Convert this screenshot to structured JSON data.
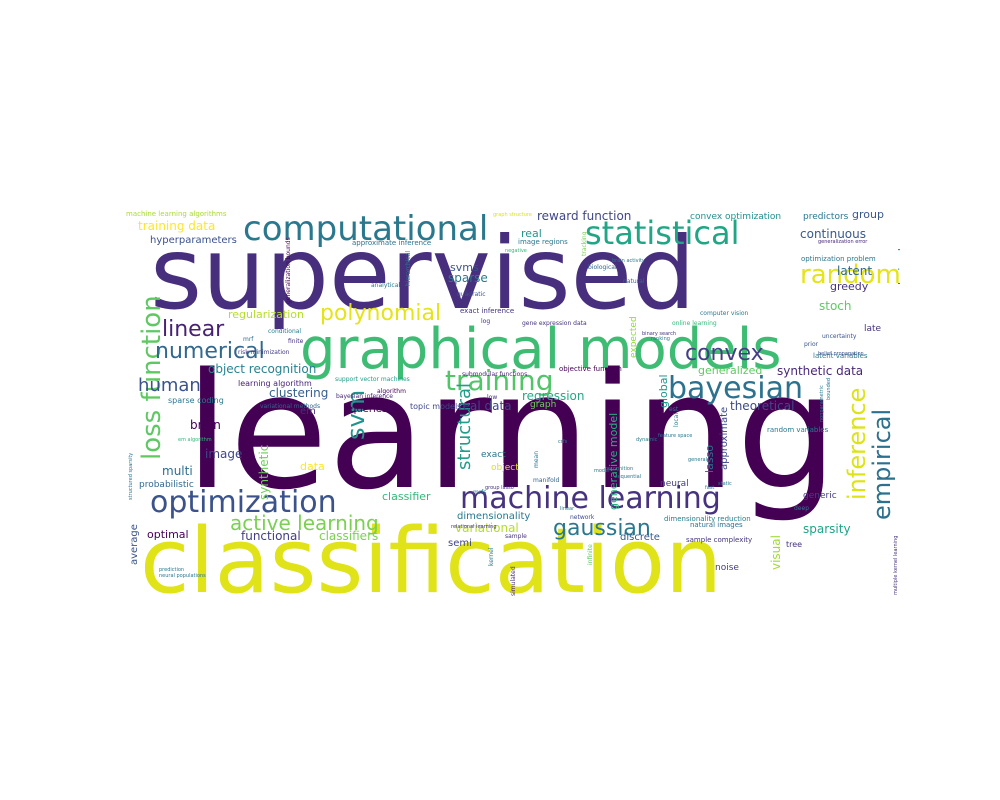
{
  "words": [
    {
      "text": "learning",
      "color": "#440154",
      "rank": 1
    },
    {
      "text": "supervised",
      "color": "#472f7d",
      "rank": 2
    },
    {
      "text": "classification",
      "color": "#dfe318",
      "rank": 3
    },
    {
      "text": "graphical models",
      "color": "#3fbc73",
      "rank": 4
    },
    {
      "text": "computational",
      "color": "#2a788e",
      "rank": 5
    },
    {
      "text": "statistical",
      "color": "#21a685",
      "rank": 6
    },
    {
      "text": "machine learning",
      "color": "#46327e",
      "rank": 7
    },
    {
      "text": "optimization",
      "color": "#3b528b",
      "rank": 8
    },
    {
      "text": "bayesian",
      "color": "#2c728e",
      "rank": 9
    },
    {
      "text": "training",
      "color": "#52c569",
      "rank": 10
    },
    {
      "text": "loss function",
      "color": "#5ec962",
      "rank": 11
    },
    {
      "text": "active learning",
      "color": "#7ad151",
      "rank": 12
    },
    {
      "text": "gaussian",
      "color": "#2a788e",
      "rank": 13
    },
    {
      "text": "polynomial",
      "color": "#e5e419",
      "rank": 14
    },
    {
      "text": "convex",
      "color": "#433e85",
      "rank": 15
    },
    {
      "text": "linear",
      "color": "#482173",
      "rank": 16
    },
    {
      "text": "random",
      "color": "#e5e419",
      "rank": 17
    },
    {
      "text": "numerical",
      "color": "#31688e",
      "rank": 18
    },
    {
      "text": "svm",
      "color": "#1f948c",
      "rank": 19
    },
    {
      "text": "empirical",
      "color": "#2d708e",
      "rank": 20
    },
    {
      "text": "inference",
      "color": "#dde318",
      "rank": 21
    },
    {
      "text": "human",
      "color": "#3b528b",
      "rank": 22
    },
    {
      "text": "structural",
      "color": "#1f9e89",
      "rank": 23
    },
    {
      "text": "continuous",
      "color": "#38588c",
      "rank": 24
    },
    {
      "text": "object recognition",
      "color": "#26828e",
      "rank": 25
    },
    {
      "text": "reward function",
      "color": "#404688",
      "rank": 26
    },
    {
      "text": "training data",
      "color": "#fde725",
      "rank": 27
    },
    {
      "text": "hyperparameters",
      "color": "#3b528b",
      "rank": 28
    },
    {
      "text": "regularization",
      "color": "#b5de2b",
      "rank": 29
    },
    {
      "text": "synthetic data",
      "color": "#482878",
      "rank": 30
    },
    {
      "text": "real data",
      "color": "#414487",
      "rank": 31
    },
    {
      "text": "clustering",
      "color": "#355f8d",
      "rank": 32
    },
    {
      "text": "theoretical",
      "color": "#3e4989",
      "rank": 33
    },
    {
      "text": "brain",
      "color": "#440154",
      "rank": 34
    },
    {
      "text": "image",
      "color": "#404688",
      "rank": 35
    },
    {
      "text": "multi",
      "color": "#2e6e8e",
      "rank": 36
    },
    {
      "text": "sparse",
      "color": "#2a788e",
      "rank": 37
    },
    {
      "text": "svms",
      "color": "#3b528b",
      "rank": 38
    },
    {
      "text": "real",
      "color": "#1f988b",
      "rank": 39
    },
    {
      "text": "regression",
      "color": "#22a884",
      "rank": 40
    },
    {
      "text": "group",
      "color": "#39568c",
      "rank": 41
    },
    {
      "text": "latent",
      "color": "#31688e",
      "rank": 42
    },
    {
      "text": "stoch",
      "color": "#5ec962",
      "rank": 43
    },
    {
      "text": "generalized",
      "color": "#5ec962",
      "rank": 44
    },
    {
      "text": "regularized",
      "color": "#2a788e",
      "rank": 45
    },
    {
      "text": "optimal",
      "color": "#440154",
      "rank": 46
    },
    {
      "text": "functional",
      "color": "#433e85",
      "rank": 47
    },
    {
      "text": "classifier",
      "color": "#35b779",
      "rank": 48
    },
    {
      "text": "classifiers",
      "color": "#7ad151",
      "rank": 49
    },
    {
      "text": "variational",
      "color": "#b5de2b",
      "rank": 50
    },
    {
      "text": "sparsity",
      "color": "#20a386",
      "rank": 51
    },
    {
      "text": "visual",
      "color": "#a0da39",
      "rank": 52
    },
    {
      "text": "average",
      "color": "#3b528b",
      "rank": 53
    },
    {
      "text": "data",
      "color": "#fde725",
      "rank": 54
    },
    {
      "text": "synthetic",
      "color": "#6ccd5a",
      "rank": 55
    },
    {
      "text": "probabilistic",
      "color": "#31688e",
      "rank": 56
    },
    {
      "text": "greedy",
      "color": "#46327e",
      "rank": 57
    },
    {
      "text": "generative model",
      "color": "#29af7f",
      "rank": 58
    },
    {
      "text": "global",
      "color": "#1f968b",
      "rank": 59
    },
    {
      "text": "neural",
      "color": "#433e85",
      "rank": 60
    },
    {
      "text": "lasso",
      "color": "#2c728e",
      "rank": 61
    },
    {
      "text": "approximate",
      "color": "#3e4989",
      "rank": 62
    },
    {
      "text": "queries",
      "color": "#440154",
      "rank": 63
    },
    {
      "text": "em",
      "color": "#472d7b",
      "rank": 64
    },
    {
      "text": "dimensionality",
      "color": "#2a788e",
      "rank": 65
    },
    {
      "text": "semi",
      "color": "#414487",
      "rank": 66
    },
    {
      "text": "discrete",
      "color": "#39568c",
      "rank": 67
    },
    {
      "text": "noise",
      "color": "#433e85",
      "rank": 68
    },
    {
      "text": "convex optimization",
      "color": "#21918c",
      "rank": 69
    },
    {
      "text": "predictors",
      "color": "#2a788e",
      "rank": 70
    },
    {
      "text": "graph",
      "color": "#6ccd5a",
      "rank": 71
    },
    {
      "text": "exact",
      "color": "#2a788e",
      "rank": 72
    },
    {
      "text": "object",
      "color": "#dde318",
      "rank": 73
    },
    {
      "text": "generic",
      "color": "#433e85",
      "rank": 74
    },
    {
      "text": "tree",
      "color": "#46337f",
      "rank": 75
    },
    {
      "text": "late",
      "color": "#46337f",
      "rank": 76
    },
    {
      "text": "expected",
      "color": "#90d743",
      "rank": 77
    },
    {
      "text": "topic models",
      "color": "#3e4989",
      "rank": 78
    },
    {
      "text": "learning algorithm",
      "color": "#482475",
      "rank": 79
    },
    {
      "text": "sparse coding",
      "color": "#2a788e",
      "rank": 80
    },
    {
      "text": "machine learning algorithms",
      "color": "#a8db34",
      "rank": 81
    },
    {
      "text": "approximate inference",
      "color": "#2c728e",
      "rank": 82
    },
    {
      "text": "image regions",
      "color": "#2a788e",
      "rank": 83
    },
    {
      "text": "natural images",
      "color": "#2e6e8e",
      "rank": 84
    },
    {
      "text": "sample complexity",
      "color": "#46337f",
      "rank": 85
    },
    {
      "text": "dimensionality reduction",
      "color": "#277f8e",
      "rank": 86
    },
    {
      "text": "random variables",
      "color": "#2a788e",
      "rank": 87
    },
    {
      "text": "latent variables",
      "color": "#2a788e",
      "rank": 88
    },
    {
      "text": "optimization problem",
      "color": "#2a788e",
      "rank": 89
    },
    {
      "text": "exact inference",
      "color": "#46327e",
      "rank": 90
    },
    {
      "text": "gene expression data",
      "color": "#46327e",
      "rank": 91
    },
    {
      "text": "objective function",
      "color": "#440154",
      "rank": 92
    },
    {
      "text": "submodular functions",
      "color": "#482878",
      "rank": 93
    },
    {
      "text": "bayesian inference",
      "color": "#482878",
      "rank": 94
    },
    {
      "text": "variational methods",
      "color": "#31688e",
      "rank": 95
    },
    {
      "text": "support vector machines",
      "color": "#1f9e89",
      "rank": 96
    },
    {
      "text": "risk minimization",
      "color": "#443a83",
      "rank": 97
    },
    {
      "text": "computer vision",
      "color": "#2a788e",
      "rank": 98
    },
    {
      "text": "online learning",
      "color": "#35b779",
      "rank": 99
    },
    {
      "text": "generalization bounds",
      "color": "#440154",
      "rank": 100
    },
    {
      "text": "algorithm",
      "color": "#440154",
      "rank": 101
    },
    {
      "text": "quadratic",
      "color": "#3b528b",
      "rank": 102
    },
    {
      "text": "analytical",
      "color": "#2a788e",
      "rank": 103
    },
    {
      "text": "natural",
      "color": "#31688e",
      "rank": 104
    },
    {
      "text": "biological",
      "color": "#33638d",
      "rank": 105
    },
    {
      "text": "hierarchical",
      "color": "#2a788e",
      "rank": 106
    },
    {
      "text": "conditional",
      "color": "#277f8e",
      "rank": 107
    },
    {
      "text": "finite",
      "color": "#46327e",
      "rank": 108
    },
    {
      "text": "mrf",
      "color": "#2e6e8e",
      "rank": 109
    },
    {
      "text": "em algorithm",
      "color": "#35b779",
      "rank": 110
    },
    {
      "text": "manifold",
      "color": "#33638d",
      "rank": 111
    },
    {
      "text": "low",
      "color": "#46327e",
      "rank": 112
    },
    {
      "text": "log",
      "color": "#46327e",
      "rank": 113
    },
    {
      "text": "mean",
      "color": "#2a788e",
      "rank": 114
    },
    {
      "text": "kernel",
      "color": "#2a788e",
      "rank": 115
    },
    {
      "text": "simulated",
      "color": "#482878",
      "rank": 116
    },
    {
      "text": "sample",
      "color": "#46327e",
      "rank": 117
    },
    {
      "text": "infinite",
      "color": "#5ec962",
      "rank": 118
    },
    {
      "text": "network",
      "color": "#3e4989",
      "rank": 119
    },
    {
      "text": "local",
      "color": "#2a788e",
      "rank": 120
    },
    {
      "text": "est",
      "color": "#2a788e",
      "rank": 121
    },
    {
      "text": "deep",
      "color": "#2a788e",
      "rank": 122
    },
    {
      "text": "prior",
      "color": "#3b528b",
      "rank": 123
    },
    {
      "text": "uncertainty",
      "color": "#3b528b",
      "rank": 124
    },
    {
      "text": "generalization error",
      "color": "#482878",
      "rank": 125
    },
    {
      "text": "structured sparsity",
      "color": "#2c728e",
      "rank": 126
    },
    {
      "text": "multiple kernel learning",
      "color": "#46327e",
      "rank": 127
    },
    {
      "text": "negative",
      "color": "#35b779",
      "rank": 128
    },
    {
      "text": "prediction",
      "color": "#2a788e",
      "rank": 129
    },
    {
      "text": "neural populations",
      "color": "#2a788e",
      "rank": 130
    },
    {
      "text": "graph structure",
      "color": "#dde318",
      "rank": 131
    },
    {
      "text": "dynamic",
      "color": "#2a788e",
      "rank": 132
    },
    {
      "text": "ranking",
      "color": "#2a788e",
      "rank": 133
    },
    {
      "text": "crfs",
      "color": "#2a788e",
      "rank": 134
    },
    {
      "text": "mrfs",
      "color": "#2a788e",
      "rank": 135
    },
    {
      "text": "tracking",
      "color": "#7ad151",
      "rank": 136
    },
    {
      "text": "model",
      "color": "#2a788e",
      "rank": 137
    },
    {
      "text": "fast",
      "color": "#2a788e",
      "rank": 138
    },
    {
      "text": "static",
      "color": "#2a788e",
      "rank": 139
    },
    {
      "text": "general",
      "color": "#2a788e",
      "rank": 140
    },
    {
      "text": "relational learning",
      "color": "#46327e",
      "rank": 141
    },
    {
      "text": "group lasso",
      "color": "#46327e",
      "rank": 142
    },
    {
      "text": "belief propagation",
      "color": "#3b528b",
      "rank": 143
    },
    {
      "text": "binary search",
      "color": "#46327e",
      "rank": 144
    },
    {
      "text": "brain activity",
      "color": "#2a788e",
      "rank": 145
    },
    {
      "text": "feature space",
      "color": "#2a788e",
      "rank": 146
    },
    {
      "text": "recognition",
      "color": "#2a788e",
      "rank": 147
    },
    {
      "text": "bounded",
      "color": "#2a788e",
      "rank": 148
    },
    {
      "text": "sequential",
      "color": "#2a788e",
      "rank": 149
    },
    {
      "text": "nonparametric",
      "color": "#2a788e",
      "rank": 150
    },
    {
      "text": "linear",
      "color": "#2a788e",
      "rank": 151
    }
  ]
}
